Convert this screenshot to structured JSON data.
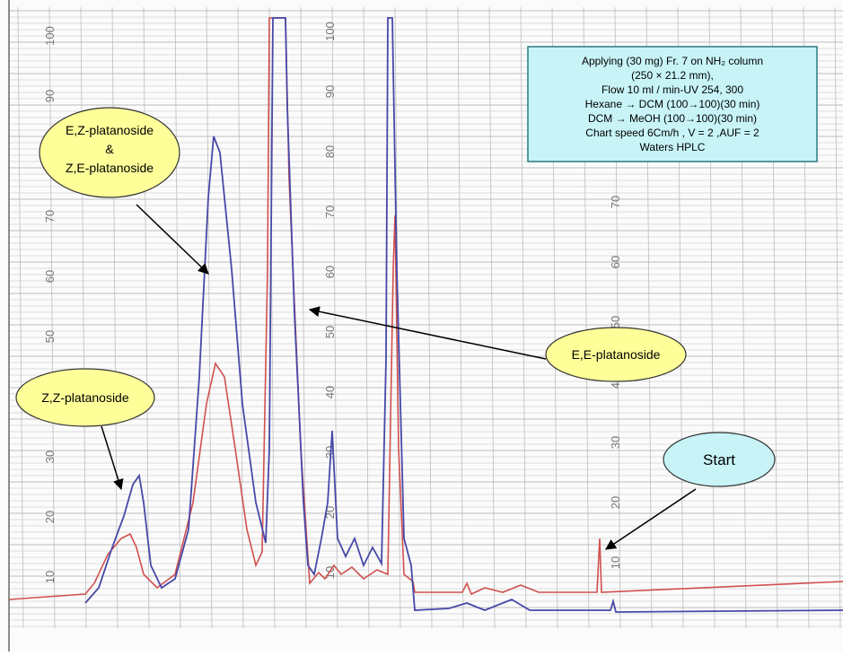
{
  "info_box": {
    "lines": [
      "Applying (30 mg) Fr. 7 on NH₂  column",
      "(250 × 21.2 mm),",
      "Flow 10 ml / min-UV 254, 300",
      "Hexane → DCM (100→100)(30 min)",
      "DCM → MeOH (100→100)(30 min)",
      "Chart speed 6Cm/h , V = 2 ,AUF = 2",
      "Waters HPLC"
    ]
  },
  "callouts": {
    "ez": {
      "lines": [
        "E,Z-platanoside",
        "&",
        "Z,E-platanoside"
      ]
    },
    "zz": {
      "label": "Z,Z-platanoside"
    },
    "ee": {
      "label": "E,E-platanoside"
    },
    "start": {
      "label": "Start"
    }
  },
  "paper_scales": [
    [
      "100",
      "90",
      "80",
      "70",
      "60",
      "50",
      "40",
      "30",
      "20",
      "10"
    ],
    [
      "100",
      "90",
      "80",
      "70",
      "60",
      "50",
      "40",
      "30",
      "20",
      "10"
    ],
    [
      "70",
      "60",
      "50",
      "40",
      "30",
      "20",
      "10"
    ]
  ]
}
